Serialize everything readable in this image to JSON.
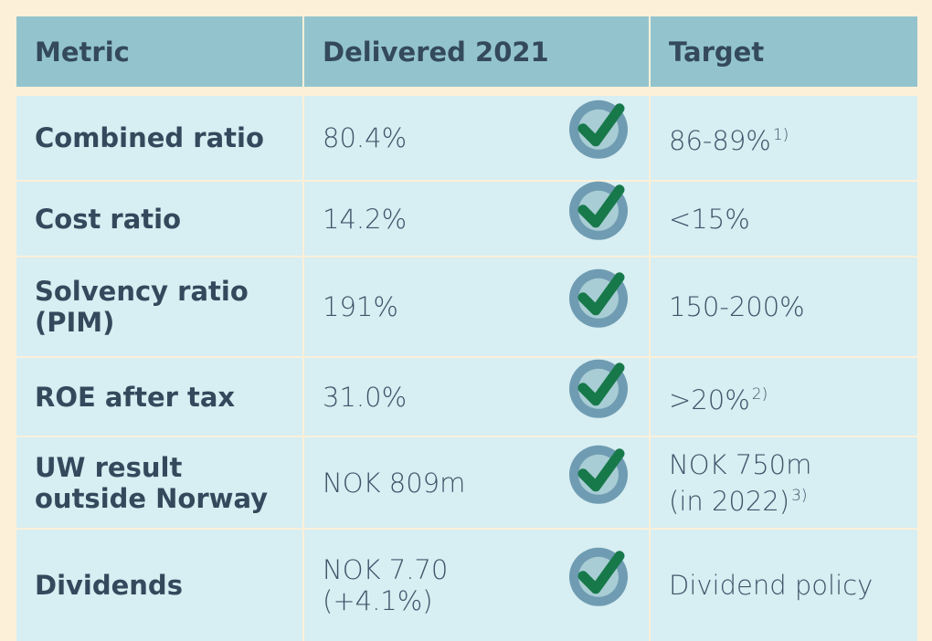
{
  "table": {
    "header": [
      "Metric",
      "Delivered 2021",
      "Target"
    ],
    "rows": [
      {
        "metric": [
          "Combined ratio"
        ],
        "delivered": [
          "80.4%"
        ],
        "target": [
          "86-89%"
        ],
        "note": "1)"
      },
      {
        "metric": [
          "Cost ratio"
        ],
        "delivered": [
          "14.2%"
        ],
        "target": [
          "<15%"
        ]
      },
      {
        "metric": [
          "Solvency ratio",
          "(PIM)"
        ],
        "delivered": [
          "191%"
        ],
        "target": [
          "150-200%"
        ]
      },
      {
        "metric": [
          "ROE after tax"
        ],
        "delivered": [
          "31.0%"
        ],
        "target": [
          ">20%"
        ],
        "note": "2)"
      },
      {
        "metric": [
          "UW result",
          "outside Norway"
        ],
        "delivered": [
          "NOK 809m"
        ],
        "target": [
          "NOK 750m",
          "(in 2022)"
        ],
        "note": "3)"
      },
      {
        "metric": [
          "Dividends"
        ],
        "delivered": [
          "NOK 7.70",
          "(+4.1%)"
        ],
        "target": [
          "Dividend policy"
        ]
      }
    ]
  }
}
